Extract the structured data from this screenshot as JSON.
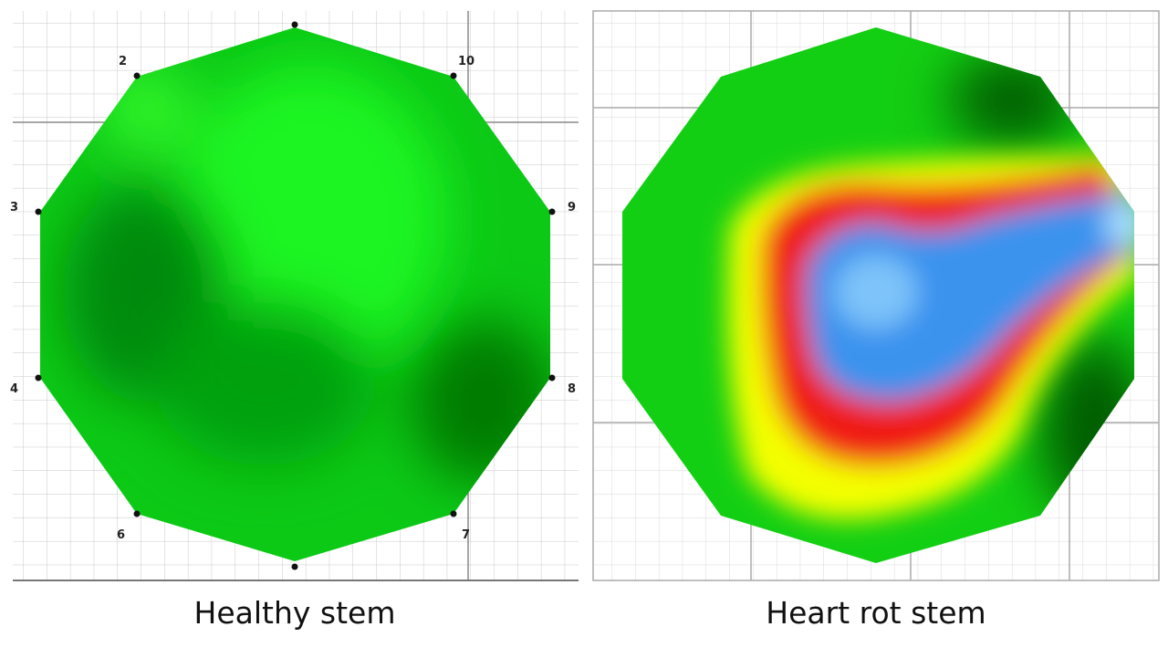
{
  "panels": [
    {
      "caption": "Healthy stem",
      "sensor_labels": [
        "2",
        "10",
        "3",
        "9",
        "4",
        "8",
        "6",
        "7"
      ],
      "colors": {
        "base": "#0fd81a",
        "dark": "#028f06",
        "light": "#1ef524"
      }
    },
    {
      "caption": "Heart rot stem",
      "colors": {
        "green": "#13cf13",
        "dark_green": "#045c06",
        "yellow": "#f4ff00",
        "red": "#f01d12",
        "blue": "#3a93ee",
        "light_blue": "#7ec4fa"
      }
    }
  ]
}
